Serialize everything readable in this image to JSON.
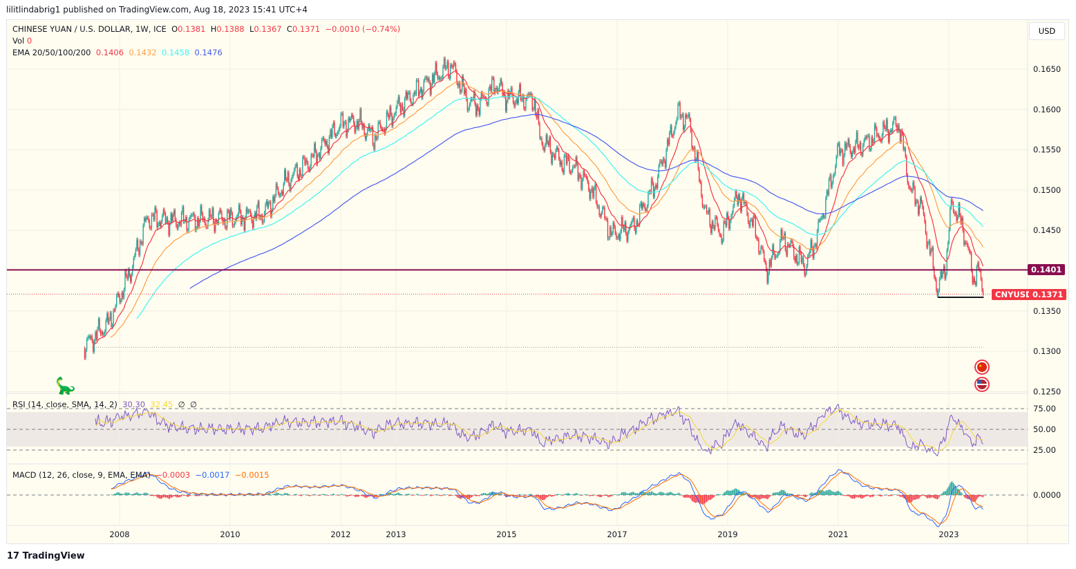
{
  "publish_line": "lilitlindabrig1 published on TradingView.com, Aug 18, 2023 15:41 UTC+4",
  "legend": {
    "symbol": "CHINESE YUAN / U.S. DOLLAR, 1W, ICE",
    "o_label": "O",
    "o": "0.1381",
    "h_label": "H",
    "h": "0.1388",
    "l_label": "L",
    "l": "0.1367",
    "c_label": "C",
    "c": "0.1371",
    "change": "−0.0010 (−0.74%)",
    "vol_label": "Vol",
    "vol": "0",
    "ema_label": "EMA 20/50/100/200",
    "ema20": "0.1406",
    "ema50": "0.1432",
    "ema100": "0.1458",
    "ema200": "0.1476",
    "rsi_label": "RSI (14, close, SMA, 14, 2)",
    "rsi": "30.30",
    "rsi_ma": "32.45",
    "rsi_x1": "∅",
    "rsi_x2": "∅",
    "macd_label": "MACD (12, 26, close, 9, EMA, EMA)",
    "macd_hist": "−0.0003",
    "macd": "−0.0017",
    "macd_signal": "−0.0015"
  },
  "currency_button": "USD",
  "footer_logo": "TradingView",
  "colors": {
    "up": "#26a69a",
    "down": "#f23645",
    "ema20": "#f23645",
    "ema50": "#ff9f45",
    "ema100": "#3ff3f3",
    "ema200": "#4a5cf2",
    "level": "#880e4f",
    "rsi": "#7e57c2",
    "rsi_ma": "#f5d735",
    "macd": "#2962ff",
    "signal": "#ff6d00"
  },
  "icons": {
    "flag_cn": "china-flag-icon",
    "flag_us": "us-flag-icon",
    "logo": "dinosaur-icon"
  },
  "chart_data": {
    "type": "candlestick",
    "x_ticks": [
      "2008",
      "2010",
      "2012",
      "2013",
      "2015",
      "2017",
      "2019",
      "2021",
      "2023"
    ],
    "x_tick_values": [
      2008,
      2010,
      2012,
      2013,
      2015,
      2017,
      2019,
      2021,
      2023
    ],
    "y_ticks": [
      "0.1650",
      "0.1600",
      "0.1550",
      "0.1500",
      "0.1450",
      "0.1350",
      "0.1300",
      "0.1250"
    ],
    "ylim": [
      0.125,
      0.169
    ],
    "rsi_ticks": [
      "75.00",
      "50.00",
      "25.00"
    ],
    "macd_ticks": [
      "0.0000"
    ],
    "level_line": {
      "value": 0.1401,
      "label": "0.1401"
    },
    "last_price": {
      "value": 0.1371,
      "label": "0.1371",
      "symbol": "CNYUSD"
    },
    "support_segment": {
      "value": 0.1367,
      "from": 2022.8,
      "to": 2023.63
    },
    "low_dotted": {
      "value": 0.1305,
      "from": 2007.5,
      "to": 2023.63
    },
    "close_keypoints": [
      [
        2007.35,
        0.1305
      ],
      [
        2007.8,
        0.1335
      ],
      [
        2008.2,
        0.14
      ],
      [
        2008.5,
        0.1465
      ],
      [
        2009.0,
        0.1462
      ],
      [
        2010.0,
        0.1465
      ],
      [
        2010.6,
        0.147
      ],
      [
        2011.0,
        0.151
      ],
      [
        2011.5,
        0.154
      ],
      [
        2012.0,
        0.1582
      ],
      [
        2012.3,
        0.1585
      ],
      [
        2012.6,
        0.1565
      ],
      [
        2013.0,
        0.16
      ],
      [
        2013.5,
        0.163
      ],
      [
        2014.0,
        0.1655
      ],
      [
        2014.3,
        0.161
      ],
      [
        2014.5,
        0.1605
      ],
      [
        2014.8,
        0.1632
      ],
      [
        2015.0,
        0.1615
      ],
      [
        2015.5,
        0.1612
      ],
      [
        2015.6,
        0.1565
      ],
      [
        2016.0,
        0.1535
      ],
      [
        2016.2,
        0.153
      ],
      [
        2016.5,
        0.1505
      ],
      [
        2016.9,
        0.1445
      ],
      [
        2017.3,
        0.1455
      ],
      [
        2017.7,
        0.151
      ],
      [
        2018.1,
        0.1595
      ],
      [
        2018.3,
        0.1585
      ],
      [
        2018.6,
        0.147
      ],
      [
        2018.9,
        0.1445
      ],
      [
        2019.2,
        0.1495
      ],
      [
        2019.5,
        0.145
      ],
      [
        2019.7,
        0.14
      ],
      [
        2020.0,
        0.144
      ],
      [
        2020.4,
        0.1405
      ],
      [
        2020.6,
        0.144
      ],
      [
        2020.9,
        0.152
      ],
      [
        2021.0,
        0.1548
      ],
      [
        2021.4,
        0.1555
      ],
      [
        2021.8,
        0.1572
      ],
      [
        2022.1,
        0.1582
      ],
      [
        2022.3,
        0.15
      ],
      [
        2022.5,
        0.148
      ],
      [
        2022.8,
        0.1375
      ],
      [
        2022.95,
        0.141
      ],
      [
        2023.05,
        0.1485
      ],
      [
        2023.25,
        0.1455
      ],
      [
        2023.45,
        0.139
      ],
      [
        2023.55,
        0.14
      ],
      [
        2023.63,
        0.1371
      ]
    ]
  }
}
